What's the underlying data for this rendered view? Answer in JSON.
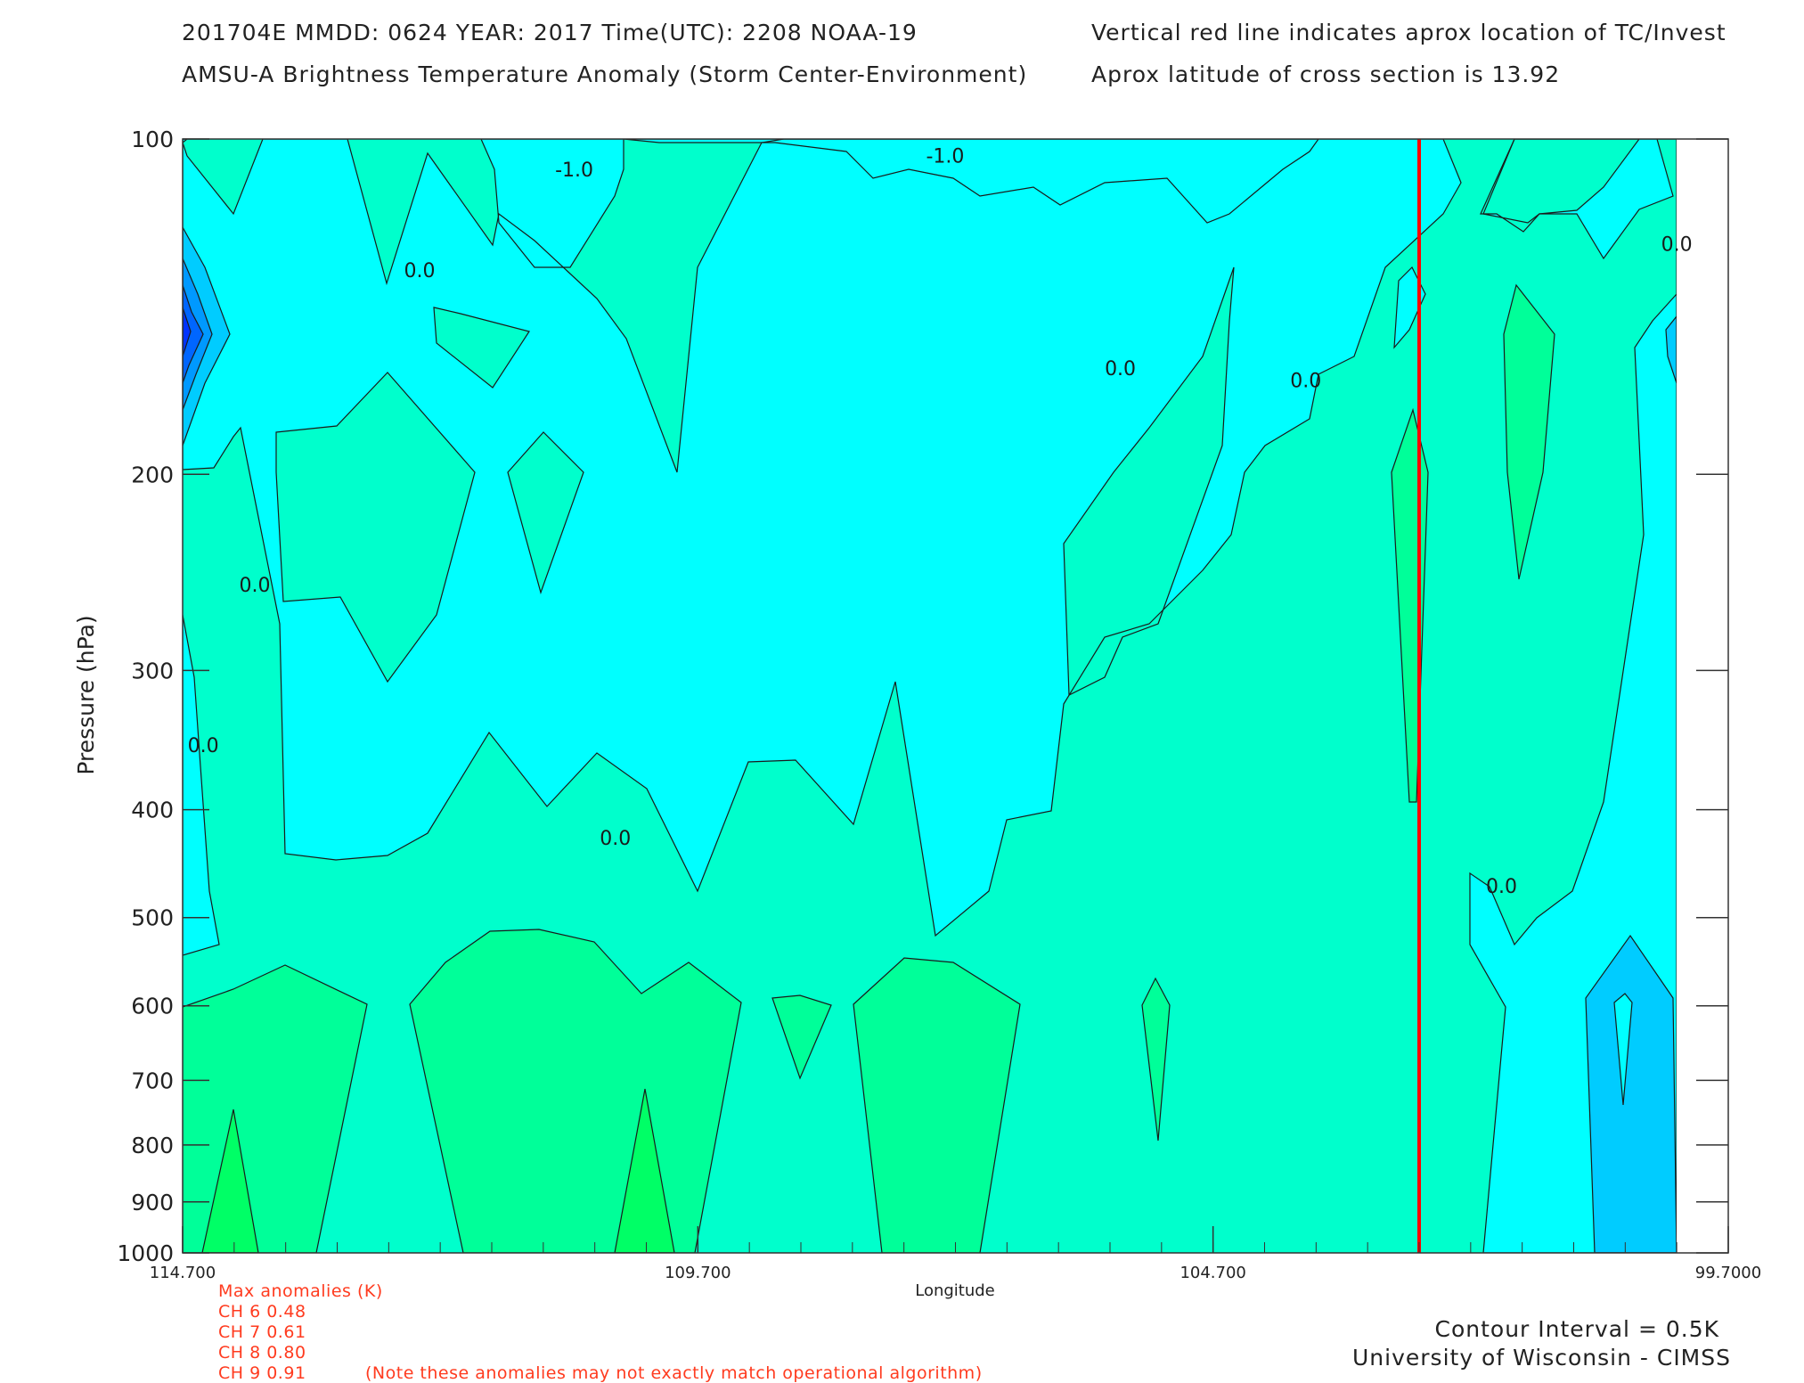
{
  "header": {
    "line1_left": "201704E  MMDD: 0624 YEAR: 2017 Time(UTC): 2208 NOAA-19",
    "line2_left": "AMSU-A Brightness Temperature Anomaly (Storm Center-Environment)",
    "line1_right": "Vertical red line indicates aprox location of TC/Invest",
    "line2_right": "Aprox latitude of cross section is 13.92"
  },
  "chart_data": {
    "type": "heatmap",
    "title": "AMSU-A Brightness Temperature Anomaly (Storm Center-Environment)",
    "xlabel": "Longitude",
    "ylabel": "Pressure (hPa)",
    "xlim": [
      114.7,
      99.7
    ],
    "ylim": [
      1000,
      100
    ],
    "x_ticks": [
      114.7,
      109.7,
      104.7,
      99.7
    ],
    "x_tick_labels": [
      "114.700",
      "109.700",
      "104.700",
      "99.7000"
    ],
    "y_ticks": [
      100,
      200,
      300,
      400,
      500,
      600,
      700,
      800,
      900,
      1000
    ],
    "y_tick_labels": [
      "100",
      "200",
      "300",
      "400",
      "500",
      "600",
      "700",
      "800",
      "900",
      "1000"
    ],
    "y_scale": "log",
    "contour_interval_K": 0.5,
    "storm_longitude": 102.7,
    "storm_line_color": "#ff0000",
    "contour_labels": [
      {
        "text": "-1.0",
        "lon": 110.9,
        "p": 108
      },
      {
        "text": "-1.0",
        "lon": 107.3,
        "p": 105
      },
      {
        "text": "0.0",
        "lon": 112.4,
        "p": 133
      },
      {
        "text": "0.0",
        "lon": 105.6,
        "p": 163
      },
      {
        "text": "0.0",
        "lon": 103.8,
        "p": 167
      },
      {
        "text": "0.0",
        "lon": 100.2,
        "p": 126
      },
      {
        "text": "0.0",
        "lon": 114.0,
        "p": 255
      },
      {
        "text": "0.0",
        "lon": 114.5,
        "p": 355
      },
      {
        "text": "0.0",
        "lon": 110.5,
        "p": 430
      },
      {
        "text": "0.0",
        "lon": 101.9,
        "p": 475
      }
    ],
    "colors": {
      "level_neg_1": "#00ffff",
      "level_0": "#00ffcc",
      "level_pos_half": "#00ff99",
      "level_pos_1": "#00ff66",
      "level_neg_1_5": "#00ccff",
      "level_neg_2": "#0099ff",
      "level_neg_2_5": "#0066ff",
      "level_neg_3": "#0033ff"
    }
  },
  "anomalies": {
    "title": "Max anomalies (K)",
    "items": [
      "CH 6  0.48",
      "CH 7  0.61",
      "CH 8  0.80",
      "CH 9  0.91"
    ],
    "note": "(Note these anomalies may not exactly match operational algorithm)"
  },
  "footer": {
    "contour_interval": "Contour Interval = 0.5K",
    "credit": "University of Wisconsin - CIMSS"
  }
}
